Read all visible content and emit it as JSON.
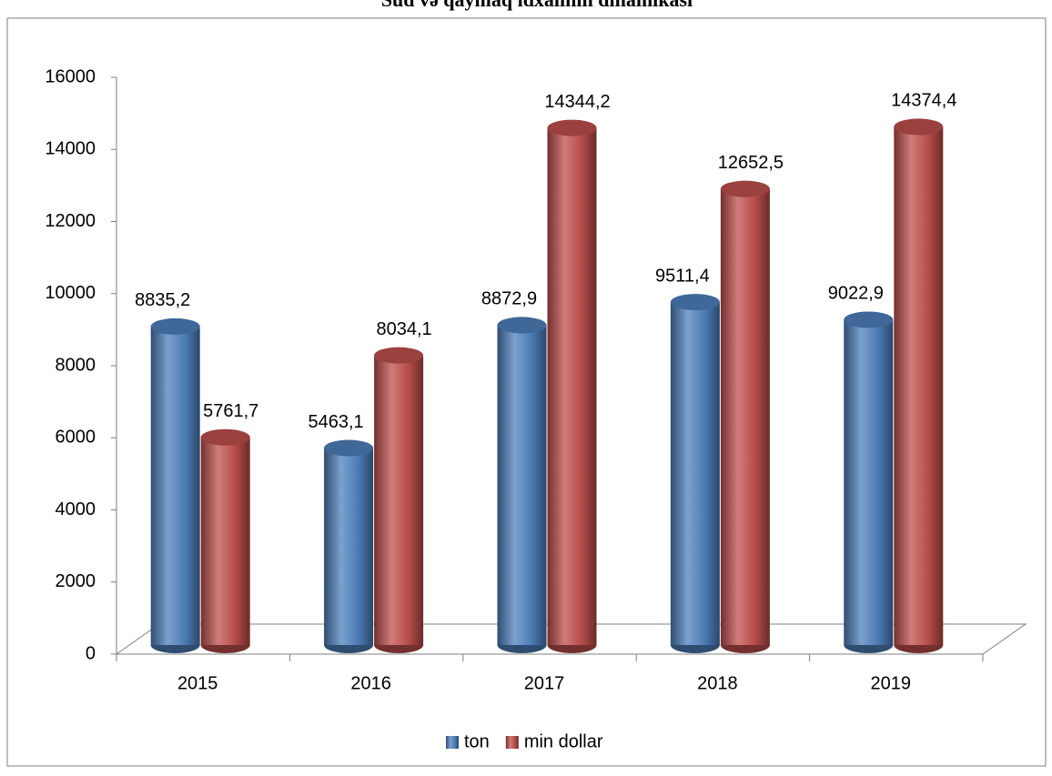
{
  "chart_data": {
    "type": "bar",
    "title": "Süd və qaymaq idxalının dinamikası",
    "categories": [
      "2015",
      "2016",
      "2017",
      "2018",
      "2019"
    ],
    "series": [
      {
        "name": "ton",
        "color": "#4f81bd",
        "values": [
          8835.2,
          5463.1,
          8872.9,
          9511.4,
          9022.9
        ],
        "value_labels": [
          "8835,2",
          "5463,1",
          "8872,9",
          "9511,4",
          "9022,9"
        ]
      },
      {
        "name": "min dollar",
        "color": "#c0504d",
        "values": [
          5761.7,
          8034.1,
          14344.2,
          12652.5,
          14374.4
        ],
        "value_labels": [
          "5761,7",
          "8034,1",
          "14344,2",
          "12652,5",
          "14374,4"
        ]
      }
    ],
    "ylim": [
      0,
      16000
    ],
    "yticks": [
      0,
      2000,
      4000,
      6000,
      8000,
      10000,
      12000,
      14000,
      16000
    ],
    "legend": "bottom"
  }
}
